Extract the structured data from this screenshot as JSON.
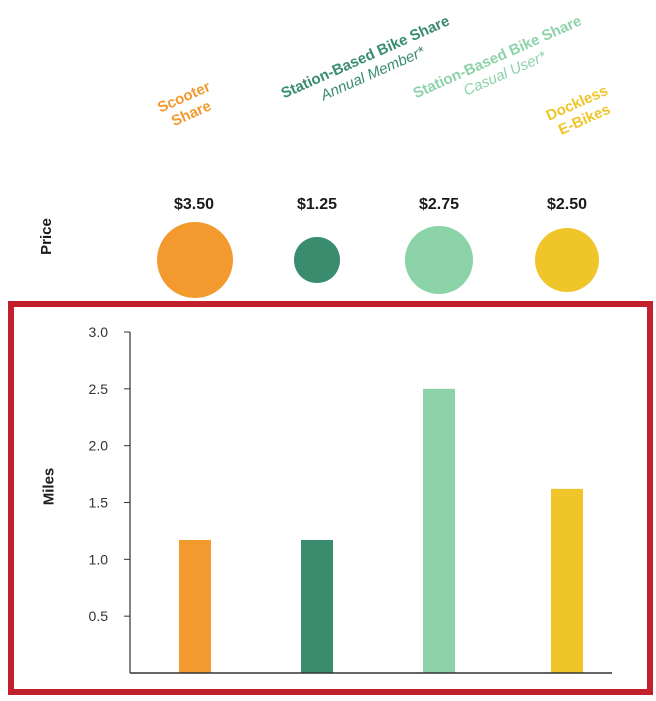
{
  "chart_data": [
    {
      "type": "bubble",
      "row_label": "Price",
      "categories": [
        {
          "name": "Scooter Share",
          "line1": "Scooter",
          "line2": "Share",
          "sub": "",
          "color": "#f39a2e"
        },
        {
          "name": "Station-Based Bike Share Annual Member*",
          "line1": "Station-Based Bike Share",
          "line2": "",
          "sub": "Annual Member*",
          "color": "#3a8c6e"
        },
        {
          "name": "Station-Based Bike Share Casual User*",
          "line1": "Station-Based Bike Share",
          "line2": "",
          "sub": "Casual User*",
          "color": "#8dd3a9"
        },
        {
          "name": "Dockless E-Bikes",
          "line1": "Dockless",
          "line2": "E-Bikes",
          "sub": "",
          "color": "#f0c52a"
        }
      ],
      "values": [
        3.5,
        1.25,
        2.75,
        2.5
      ],
      "value_labels": [
        "$3.50",
        "$1.25",
        "$2.75",
        "$2.50"
      ]
    },
    {
      "type": "bar",
      "categories": [
        "Scooter Share",
        "Station-Based Bike Share Annual Member*",
        "Station-Based Bike Share Casual User*",
        "Dockless E-Bikes"
      ],
      "values": [
        1.17,
        1.17,
        2.5,
        1.62
      ],
      "colors": [
        "#f39a2e",
        "#3a8c6e",
        "#8dd3a9",
        "#f0c52a"
      ],
      "ylabel": "Miles",
      "ylim": [
        0,
        3.0
      ],
      "yticks": [
        "0.5",
        "1.0",
        "1.5",
        "2.0",
        "2.5",
        "3.0"
      ],
      "grid": false
    }
  ],
  "highlight_color": "#c3202e"
}
